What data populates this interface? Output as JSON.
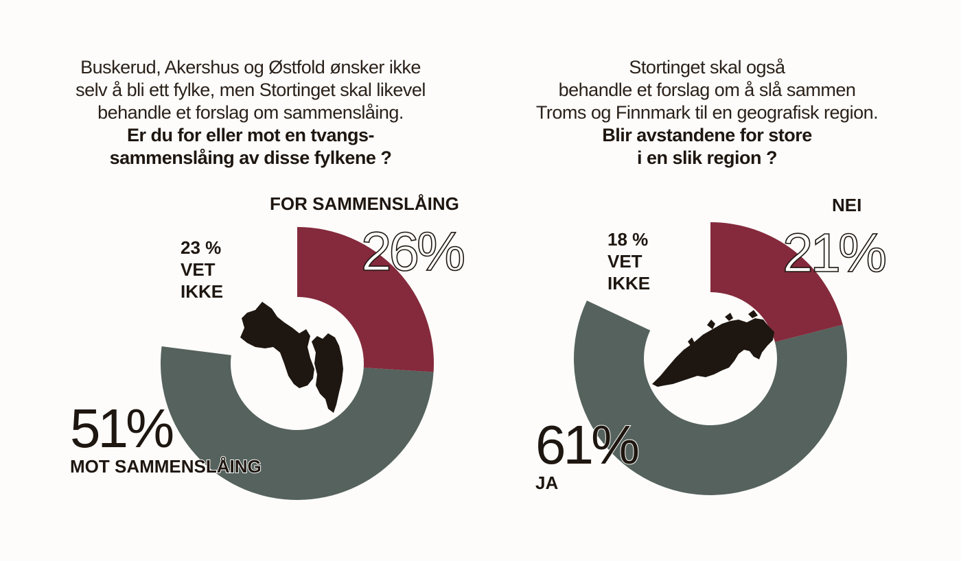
{
  "colors": {
    "red": "#842a3c",
    "gray": "#55625e",
    "map": "#1e1610",
    "background": "#fdfcfa"
  },
  "chart_data": [
    {
      "type": "pie",
      "question_lines": [
        "Buskerud, Akershus og Østfold ønsker ikke",
        "selv å bli ett fylke, men Stortinget skal likevel",
        "behandle et forslag om sammenslåing."
      ],
      "question_bold_lines": [
        "Er du for eller mot en tvangs-",
        "sammenslåing av disse fylkene ?"
      ],
      "slices": [
        {
          "label": "FOR SAMMENSLÅING",
          "value": 26,
          "value_text": "26%",
          "color": "#842a3c"
        },
        {
          "label": "MOT SAMMENSLÅING",
          "value": 51,
          "value_text": "51%",
          "color": "#55625e"
        },
        {
          "label": "VET IKKE",
          "value": 23,
          "value_text": "23 %",
          "lines": [
            "23 %",
            "VET",
            "IKKE"
          ],
          "color": "none"
        }
      ],
      "map": "buskerud-akershus-ostfold-map"
    },
    {
      "type": "pie",
      "question_lines": [
        "Stortinget skal også",
        "behandle et forslag om å slå sammen",
        "Troms og Finnmark til en geografisk region."
      ],
      "question_bold_lines": [
        "Blir avstandene for store",
        "i en slik region ?"
      ],
      "slices": [
        {
          "label": "NEI",
          "value": 21,
          "value_text": "21%",
          "color": "#842a3c"
        },
        {
          "label": "JA",
          "value": 61,
          "value_text": "61%",
          "color": "#55625e"
        },
        {
          "label": "VET IKKE",
          "value": 18,
          "value_text": "18 %",
          "lines": [
            "18 %",
            "VET",
            "IKKE"
          ],
          "color": "none"
        }
      ],
      "map": "troms-finnmark-map"
    }
  ]
}
